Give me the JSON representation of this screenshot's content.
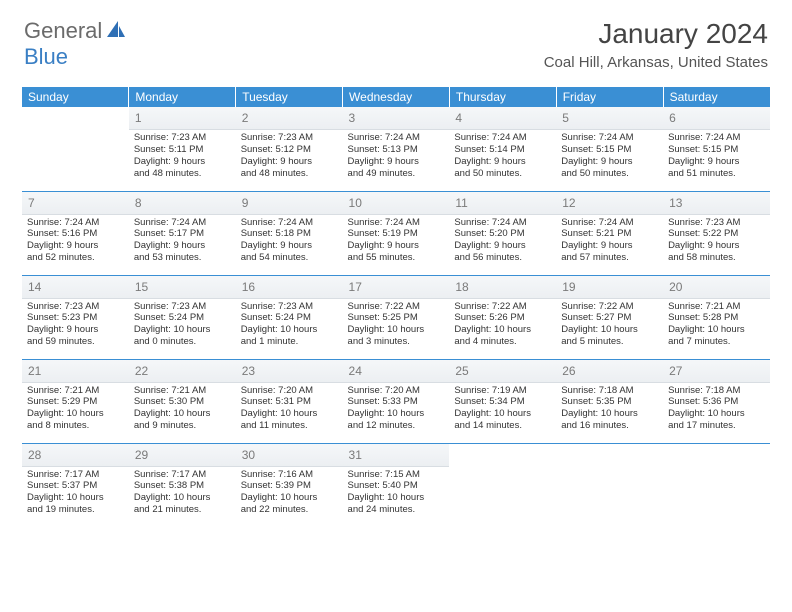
{
  "logo": {
    "general": "General",
    "blue": "Blue"
  },
  "title": "January 2024",
  "location": "Coal Hill, Arkansas, United States",
  "dayHeaders": [
    "Sunday",
    "Monday",
    "Tuesday",
    "Wednesday",
    "Thursday",
    "Friday",
    "Saturday"
  ],
  "header_bg": "#3a8fd4",
  "weeks": [
    [
      {
        "n": "",
        "sr": "",
        "ss": "",
        "dl1": "",
        "dl2": ""
      },
      {
        "n": "1",
        "sr": "Sunrise: 7:23 AM",
        "ss": "Sunset: 5:11 PM",
        "dl1": "Daylight: 9 hours",
        "dl2": "and 48 minutes."
      },
      {
        "n": "2",
        "sr": "Sunrise: 7:23 AM",
        "ss": "Sunset: 5:12 PM",
        "dl1": "Daylight: 9 hours",
        "dl2": "and 48 minutes."
      },
      {
        "n": "3",
        "sr": "Sunrise: 7:24 AM",
        "ss": "Sunset: 5:13 PM",
        "dl1": "Daylight: 9 hours",
        "dl2": "and 49 minutes."
      },
      {
        "n": "4",
        "sr": "Sunrise: 7:24 AM",
        "ss": "Sunset: 5:14 PM",
        "dl1": "Daylight: 9 hours",
        "dl2": "and 50 minutes."
      },
      {
        "n": "5",
        "sr": "Sunrise: 7:24 AM",
        "ss": "Sunset: 5:15 PM",
        "dl1": "Daylight: 9 hours",
        "dl2": "and 50 minutes."
      },
      {
        "n": "6",
        "sr": "Sunrise: 7:24 AM",
        "ss": "Sunset: 5:15 PM",
        "dl1": "Daylight: 9 hours",
        "dl2": "and 51 minutes."
      }
    ],
    [
      {
        "n": "7",
        "sr": "Sunrise: 7:24 AM",
        "ss": "Sunset: 5:16 PM",
        "dl1": "Daylight: 9 hours",
        "dl2": "and 52 minutes."
      },
      {
        "n": "8",
        "sr": "Sunrise: 7:24 AM",
        "ss": "Sunset: 5:17 PM",
        "dl1": "Daylight: 9 hours",
        "dl2": "and 53 minutes."
      },
      {
        "n": "9",
        "sr": "Sunrise: 7:24 AM",
        "ss": "Sunset: 5:18 PM",
        "dl1": "Daylight: 9 hours",
        "dl2": "and 54 minutes."
      },
      {
        "n": "10",
        "sr": "Sunrise: 7:24 AM",
        "ss": "Sunset: 5:19 PM",
        "dl1": "Daylight: 9 hours",
        "dl2": "and 55 minutes."
      },
      {
        "n": "11",
        "sr": "Sunrise: 7:24 AM",
        "ss": "Sunset: 5:20 PM",
        "dl1": "Daylight: 9 hours",
        "dl2": "and 56 minutes."
      },
      {
        "n": "12",
        "sr": "Sunrise: 7:24 AM",
        "ss": "Sunset: 5:21 PM",
        "dl1": "Daylight: 9 hours",
        "dl2": "and 57 minutes."
      },
      {
        "n": "13",
        "sr": "Sunrise: 7:23 AM",
        "ss": "Sunset: 5:22 PM",
        "dl1": "Daylight: 9 hours",
        "dl2": "and 58 minutes."
      }
    ],
    [
      {
        "n": "14",
        "sr": "Sunrise: 7:23 AM",
        "ss": "Sunset: 5:23 PM",
        "dl1": "Daylight: 9 hours",
        "dl2": "and 59 minutes."
      },
      {
        "n": "15",
        "sr": "Sunrise: 7:23 AM",
        "ss": "Sunset: 5:24 PM",
        "dl1": "Daylight: 10 hours",
        "dl2": "and 0 minutes."
      },
      {
        "n": "16",
        "sr": "Sunrise: 7:23 AM",
        "ss": "Sunset: 5:24 PM",
        "dl1": "Daylight: 10 hours",
        "dl2": "and 1 minute."
      },
      {
        "n": "17",
        "sr": "Sunrise: 7:22 AM",
        "ss": "Sunset: 5:25 PM",
        "dl1": "Daylight: 10 hours",
        "dl2": "and 3 minutes."
      },
      {
        "n": "18",
        "sr": "Sunrise: 7:22 AM",
        "ss": "Sunset: 5:26 PM",
        "dl1": "Daylight: 10 hours",
        "dl2": "and 4 minutes."
      },
      {
        "n": "19",
        "sr": "Sunrise: 7:22 AM",
        "ss": "Sunset: 5:27 PM",
        "dl1": "Daylight: 10 hours",
        "dl2": "and 5 minutes."
      },
      {
        "n": "20",
        "sr": "Sunrise: 7:21 AM",
        "ss": "Sunset: 5:28 PM",
        "dl1": "Daylight: 10 hours",
        "dl2": "and 7 minutes."
      }
    ],
    [
      {
        "n": "21",
        "sr": "Sunrise: 7:21 AM",
        "ss": "Sunset: 5:29 PM",
        "dl1": "Daylight: 10 hours",
        "dl2": "and 8 minutes."
      },
      {
        "n": "22",
        "sr": "Sunrise: 7:21 AM",
        "ss": "Sunset: 5:30 PM",
        "dl1": "Daylight: 10 hours",
        "dl2": "and 9 minutes."
      },
      {
        "n": "23",
        "sr": "Sunrise: 7:20 AM",
        "ss": "Sunset: 5:31 PM",
        "dl1": "Daylight: 10 hours",
        "dl2": "and 11 minutes."
      },
      {
        "n": "24",
        "sr": "Sunrise: 7:20 AM",
        "ss": "Sunset: 5:33 PM",
        "dl1": "Daylight: 10 hours",
        "dl2": "and 12 minutes."
      },
      {
        "n": "25",
        "sr": "Sunrise: 7:19 AM",
        "ss": "Sunset: 5:34 PM",
        "dl1": "Daylight: 10 hours",
        "dl2": "and 14 minutes."
      },
      {
        "n": "26",
        "sr": "Sunrise: 7:18 AM",
        "ss": "Sunset: 5:35 PM",
        "dl1": "Daylight: 10 hours",
        "dl2": "and 16 minutes."
      },
      {
        "n": "27",
        "sr": "Sunrise: 7:18 AM",
        "ss": "Sunset: 5:36 PM",
        "dl1": "Daylight: 10 hours",
        "dl2": "and 17 minutes."
      }
    ],
    [
      {
        "n": "28",
        "sr": "Sunrise: 7:17 AM",
        "ss": "Sunset: 5:37 PM",
        "dl1": "Daylight: 10 hours",
        "dl2": "and 19 minutes."
      },
      {
        "n": "29",
        "sr": "Sunrise: 7:17 AM",
        "ss": "Sunset: 5:38 PM",
        "dl1": "Daylight: 10 hours",
        "dl2": "and 21 minutes."
      },
      {
        "n": "30",
        "sr": "Sunrise: 7:16 AM",
        "ss": "Sunset: 5:39 PM",
        "dl1": "Daylight: 10 hours",
        "dl2": "and 22 minutes."
      },
      {
        "n": "31",
        "sr": "Sunrise: 7:15 AM",
        "ss": "Sunset: 5:40 PM",
        "dl1": "Daylight: 10 hours",
        "dl2": "and 24 minutes."
      },
      {
        "n": "",
        "sr": "",
        "ss": "",
        "dl1": "",
        "dl2": ""
      },
      {
        "n": "",
        "sr": "",
        "ss": "",
        "dl1": "",
        "dl2": ""
      },
      {
        "n": "",
        "sr": "",
        "ss": "",
        "dl1": "",
        "dl2": ""
      }
    ]
  ]
}
